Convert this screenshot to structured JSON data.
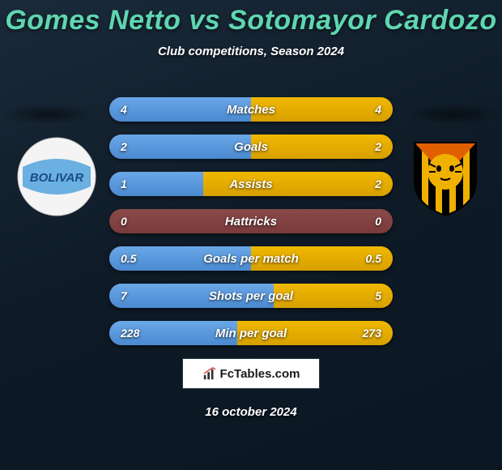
{
  "title_parts": {
    "p1": "Gomes Netto",
    "vs": "vs",
    "p2": "Sotomayor Cardozo"
  },
  "subtitle": "Club competitions, Season 2024",
  "date": "16 october 2024",
  "brand": "FcTables.com",
  "colors": {
    "title": "#5fd6b0",
    "bar_base": "#7a3a3a",
    "bar_base_light": "#8a4a4a",
    "bar_left": "#6aa8e8",
    "bar_left_dark": "#4a8ad0",
    "bar_right": "#f0b800",
    "bar_right_dark": "#d8a000",
    "background_from": "#1a2a3a",
    "background_to": "#0a1622",
    "text": "#ffffff"
  },
  "crest_left": {
    "bg": "#ffffff",
    "band": "#6ab0e0",
    "text": "BOLIVAR",
    "text_color": "#1a4a8a"
  },
  "crest_right": {
    "stripes": [
      "#000000",
      "#f0b000"
    ],
    "accent": "#e06000",
    "tiger": "#f0b000"
  },
  "stats": [
    {
      "label": "Matches",
      "left_val": "4",
      "right_val": "4",
      "left_pct": 50,
      "right_pct": 50
    },
    {
      "label": "Goals",
      "left_val": "2",
      "right_val": "2",
      "left_pct": 50,
      "right_pct": 50
    },
    {
      "label": "Assists",
      "left_val": "1",
      "right_val": "2",
      "left_pct": 33,
      "right_pct": 67
    },
    {
      "label": "Hattricks",
      "left_val": "0",
      "right_val": "0",
      "left_pct": 0,
      "right_pct": 0
    },
    {
      "label": "Goals per match",
      "left_val": "0.5",
      "right_val": "0.5",
      "left_pct": 50,
      "right_pct": 50
    },
    {
      "label": "Shots per goal",
      "left_val": "7",
      "right_val": "5",
      "left_pct": 58,
      "right_pct": 42
    },
    {
      "label": "Min per goal",
      "left_val": "228",
      "right_val": "273",
      "left_pct": 45,
      "right_pct": 55
    }
  ]
}
